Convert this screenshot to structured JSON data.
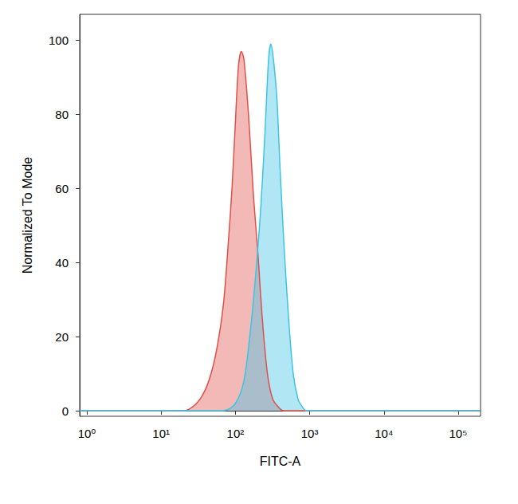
{
  "chart_data": {
    "type": "area",
    "xlabel": "FITC-A",
    "ylabel": "Normalized To Mode",
    "log": "x",
    "grid": false,
    "xlim": [
      0.8,
      200000
    ],
    "xticks": [
      {
        "value": 1,
        "label": "10⁰"
      },
      {
        "value": 10,
        "label": "10¹"
      },
      {
        "value": 100,
        "label": "10²"
      },
      {
        "value": 1000,
        "label": "10³"
      },
      {
        "value": 10000,
        "label": "10⁴"
      },
      {
        "value": 100000,
        "label": "10⁵"
      }
    ],
    "ylim": [
      -1.5,
      107
    ],
    "yticks": [
      0,
      20,
      40,
      60,
      80,
      100
    ],
    "series": [
      {
        "color": "#e0504a",
        "x": [
          0.8,
          20,
          30,
          40,
          50,
          60,
          70,
          80,
          90,
          100,
          110,
          120,
          130,
          150,
          175,
          200,
          230,
          270,
          320,
          400,
          450,
          200000
        ],
        "values": [
          0,
          0,
          2,
          6,
          12,
          20,
          30,
          45,
          60,
          78,
          93,
          97,
          95,
          80,
          58,
          43,
          25,
          10,
          3,
          0.5,
          0,
          0
        ]
      },
      {
        "color": "#3cc4e6",
        "x": [
          0.8,
          70,
          100,
          130,
          160,
          190,
          220,
          250,
          280,
          300,
          320,
          360,
          400,
          450,
          520,
          600,
          700,
          800,
          900,
          200000
        ],
        "values": [
          0,
          0,
          2,
          8,
          22,
          38,
          55,
          75,
          95,
          99,
          96,
          85,
          65,
          45,
          25,
          10,
          3,
          1,
          0,
          0
        ]
      }
    ]
  }
}
